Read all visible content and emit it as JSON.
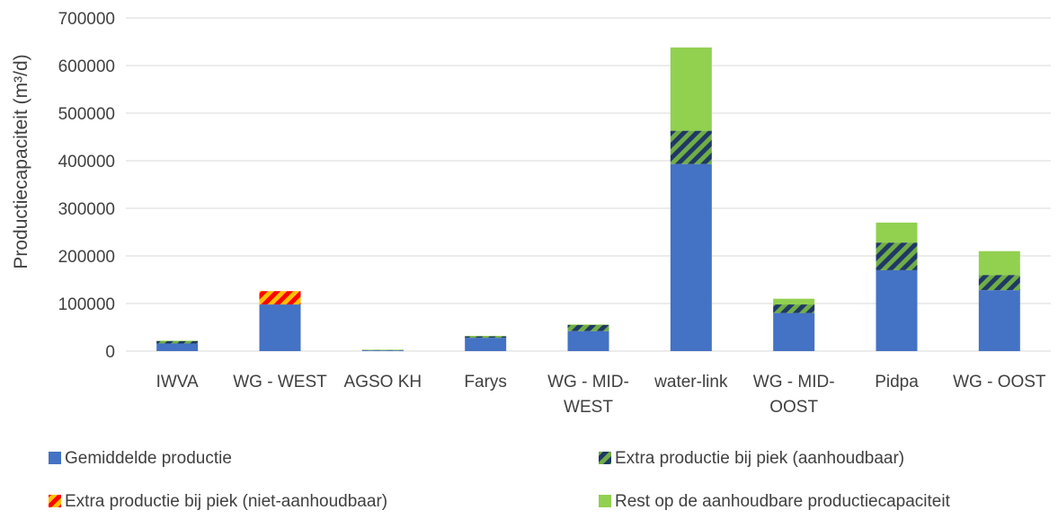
{
  "chart_data": {
    "type": "bar",
    "stacked": true,
    "title": "",
    "ylabel": "Productiecapaciteit (m³/d)",
    "xlabel": "",
    "ylim": [
      0,
      700000
    ],
    "yticks": [
      0,
      100000,
      200000,
      300000,
      400000,
      500000,
      600000,
      700000
    ],
    "grid": true,
    "legend_position": "bottom",
    "categories": [
      [
        "IWVA"
      ],
      [
        "WG - WEST"
      ],
      [
        "AGSO KH"
      ],
      [
        "Farys"
      ],
      [
        "WG - MID-",
        "WEST"
      ],
      [
        "water-link"
      ],
      [
        "WG - MID-",
        "OOST"
      ],
      [
        "Pidpa"
      ],
      [
        "WG - OOST"
      ]
    ],
    "series": [
      {
        "name": "Gemiddelde productie",
        "color": "#4472C4",
        "pattern": "solid",
        "values": [
          16000,
          98000,
          1500,
          28000,
          42000,
          393000,
          80000,
          170000,
          128000
        ]
      },
      {
        "name": "Extra productie bij piek (aanhoudbaar)",
        "color": "#70AD47",
        "pattern": "hatch-navy",
        "values": [
          5000,
          0,
          1000,
          3000,
          13000,
          70000,
          18000,
          58000,
          32000
        ]
      },
      {
        "name": "Extra productie bij piek (niet-aanhoudbaar)",
        "color": "#FF0000",
        "pattern": "hatch-yellow",
        "values": [
          0,
          28000,
          0,
          0,
          0,
          0,
          0,
          0,
          0
        ]
      },
      {
        "name": "Rest op de aanhoudbare productiecapaciteit",
        "color": "#92D050",
        "pattern": "solid",
        "values": [
          1000,
          0,
          500,
          1000,
          1000,
          175000,
          12000,
          42000,
          50000
        ]
      }
    ]
  }
}
